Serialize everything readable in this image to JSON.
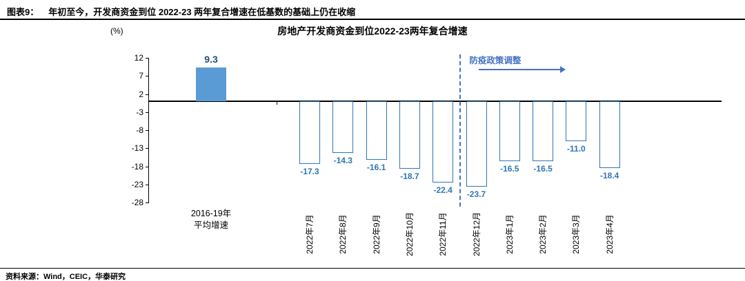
{
  "header": {
    "tag": "图表9：",
    "title": "年初至今，开发商资金到位 2022-23 两年复合增速在低基数的基础上仍在收缩"
  },
  "chart": {
    "title": "房地产开发商资金到位2022-23两年复合增速",
    "unit_label": "(%)"
  },
  "chart_data": {
    "type": "bar",
    "title": "房地产开发商资金到位2022-23两年复合增速",
    "ylabel": "(%)",
    "ylim": [
      -28,
      12
    ],
    "yticks": [
      12,
      7,
      2,
      -3,
      -8,
      -13,
      -18,
      -23,
      -28
    ],
    "categories": [
      "2016-19年\n平均增速",
      "2022年7月",
      "2022年8月",
      "2022年9月",
      "2022年10月",
      "2022年11月",
      "2022年12月",
      "2023年1月",
      "2023年2月",
      "2023年3月",
      "2023年4月"
    ],
    "values": [
      9.3,
      -17.3,
      -14.3,
      -16.1,
      -18.7,
      -22.4,
      -23.7,
      -16.5,
      -16.5,
      -11.0,
      -18.4
    ],
    "grid": false,
    "annotation": {
      "label": "防疫政策调整",
      "divider_after_category": "2022年11月"
    },
    "colors": {
      "filled_bar": "#5b9bd5",
      "bar_outline": "#2e75b6",
      "value_label": "#2e75b6",
      "positive_label": "#1f4e79",
      "annotation": "#4472c4"
    }
  },
  "footer": {
    "source": "资料来源：Wind，CEIC，华泰研究"
  }
}
